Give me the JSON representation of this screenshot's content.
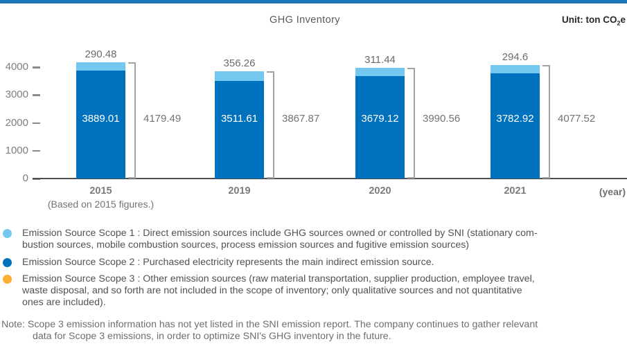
{
  "page": {
    "accent_color": "#1B76BC",
    "background": "#FFFFFF"
  },
  "header": {
    "unit_prefix": "Unit: ton CO",
    "unit_sub": "2",
    "unit_suffix": "e"
  },
  "chart_data": {
    "type": "bar",
    "stacked": true,
    "title": "GHG Inventory",
    "unit": "ton CO2e",
    "categories": [
      "2015",
      "2019",
      "2020",
      "2021"
    ],
    "category_notes": [
      "(Based on 2015 figures.)",
      "",
      "",
      ""
    ],
    "xlabel": "(year)",
    "ylim": [
      0,
      4400
    ],
    "yticks": [
      0,
      1000,
      2000,
      3000,
      4000
    ],
    "grid": false,
    "legend_position": "bottom",
    "series": [
      {
        "name": "Emission Source Scope 2",
        "color": "#0071BC",
        "values": [
          3889.01,
          3511.61,
          3679.12,
          3782.92
        ]
      },
      {
        "name": "Emission Source Scope 1",
        "color": "#74C8F0",
        "values": [
          290.48,
          356.26,
          311.44,
          294.6
        ]
      }
    ],
    "totals": [
      4179.49,
      3867.87,
      3990.56,
      4077.52
    ]
  },
  "legend": {
    "items": [
      {
        "color": "#74C8F0",
        "lines": [
          "Emission Source Scope 1 : Direct emission sources include GHG sources owned or controlled by SNI (stationary com-",
          "bustion sources, mobile combustion sources, process emission sources and fugitive emission sources)"
        ]
      },
      {
        "color": "#0071BC",
        "lines": [
          "Emission Source Scope 2 : Purchased electricity represents the main indirect emission source."
        ]
      },
      {
        "color": "#FBB034",
        "lines": [
          "Emission Source Scope 3 : Other emission sources (raw material transportation, supplier production, employee travel,",
          "waste disposal, and so forth are not included in the scope of inventory; only qualitative sources and not quantitative",
          "ones are included)."
        ]
      }
    ]
  },
  "note": {
    "lines": [
      "Note: Scope 3 emission information has not yet listed in the SNI emission report. The company continues to gather relevant",
      "data for Scope 3 emissions, in order to optimize SNI's GHG inventory in the future."
    ]
  }
}
